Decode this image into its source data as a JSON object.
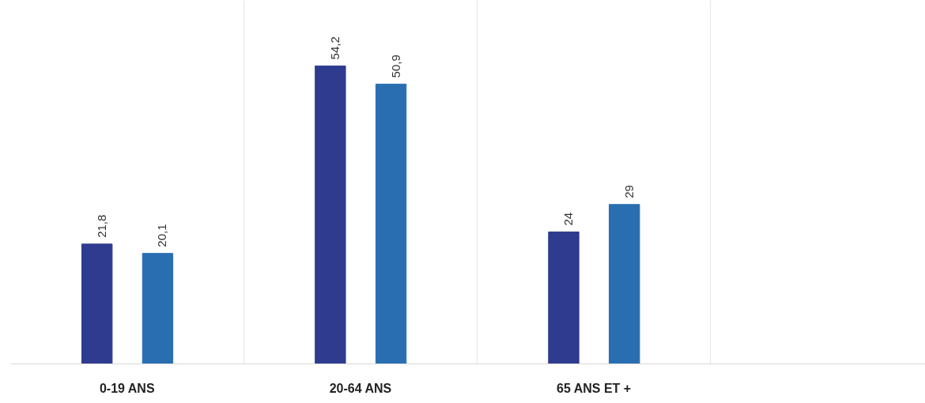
{
  "chart_data": {
    "type": "bar",
    "categories": [
      "0-19 ANS",
      "20-64 ANS",
      "65 ANS ET +",
      null
    ],
    "series": [
      {
        "color": "#2f3b8f",
        "values": [
          21.8,
          54.2,
          24,
          null
        ],
        "value_labels": [
          "21,8",
          "54,2",
          "24",
          null
        ]
      },
      {
        "color": "#2a6eb2",
        "values": [
          20.1,
          50.9,
          29,
          null
        ],
        "value_labels": [
          "20,1",
          "50,9",
          "29",
          null
        ]
      }
    ],
    "grid": "x"
  }
}
